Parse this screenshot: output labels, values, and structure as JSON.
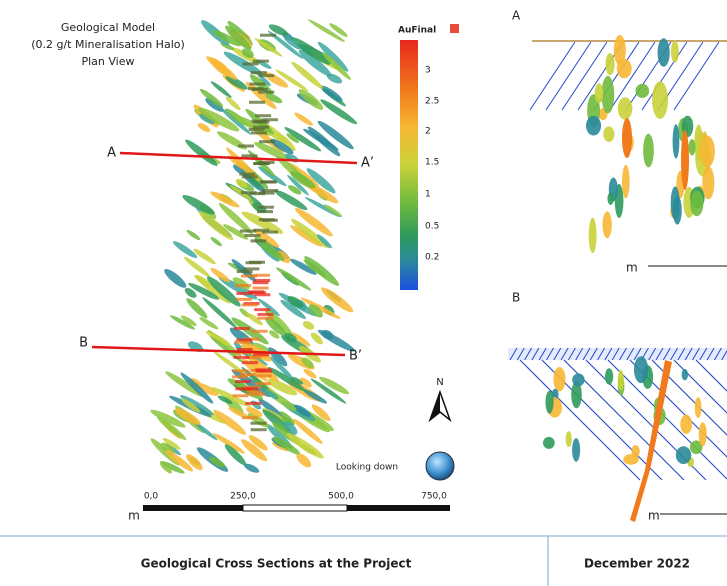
{
  "plan_view": {
    "title_lines": [
      "Geological Model",
      "(0.2 g/t Mineralisation Halo)",
      "Plan View"
    ],
    "section_lines": [
      {
        "start": "A",
        "end": "A’"
      },
      {
        "start": "B",
        "end": "B’"
      }
    ],
    "north": "N",
    "view_label": "Looking down",
    "scale": {
      "unit": "m",
      "labels": [
        "0,0",
        "250,0",
        "500,0",
        "750,0"
      ]
    }
  },
  "legend": {
    "title": "AuFinal",
    "labels": [
      "3",
      "2.5",
      "2",
      "1.5",
      "1",
      "0.5",
      "0.2"
    ]
  },
  "sections": [
    {
      "label": "A",
      "unit": "m"
    },
    {
      "label": "B",
      "unit": "m"
    }
  ],
  "footer": {
    "caption": "Geological Cross Sections at the Project",
    "date": "December 2022"
  }
}
